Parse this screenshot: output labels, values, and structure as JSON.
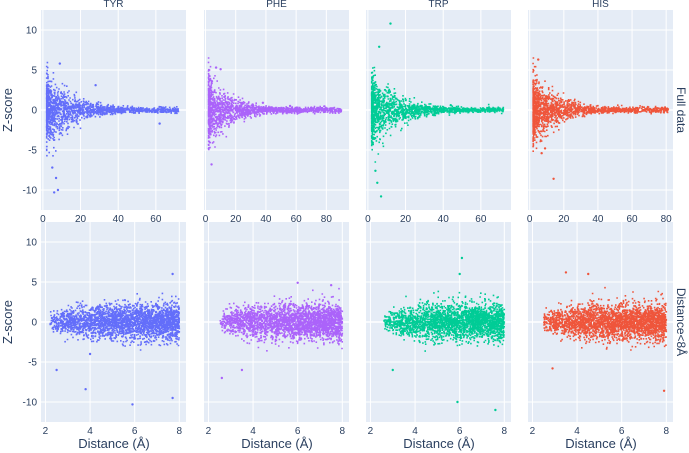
{
  "chart_data": {
    "type": "scatter",
    "layout": "2x4 faceted grid",
    "ylabel": "Z-score",
    "xlabel": "Distance (Å)",
    "column_titles": [
      "TYR",
      "PHE",
      "TRP",
      "HIS"
    ],
    "row_titles": [
      "Full data",
      "Distance<8Å"
    ],
    "colors": {
      "TYR": "#636efa",
      "PHE": "#ab63fa",
      "TRP": "#00cc96",
      "HIS": "#ef553b"
    },
    "ylim": [
      -12.5,
      12.5
    ],
    "yticks": [
      -10,
      -5,
      0,
      5,
      10
    ],
    "panels": [
      {
        "name": "TYR",
        "row": "Full data",
        "xlim": [
          -1,
          76
        ],
        "xticks": [
          0,
          20,
          40,
          60
        ],
        "max_distance": 72,
        "points_x": [
          6,
          8,
          7,
          5,
          9,
          28,
          62
        ],
        "points_y": [
          -10.3,
          -10,
          -8.5,
          -7.2,
          5.8,
          3.1,
          -1.7
        ]
      },
      {
        "name": "PHE",
        "row": "Full data",
        "xlim": [
          -1,
          95
        ],
        "xticks": [
          0,
          20,
          40,
          60,
          80
        ],
        "max_distance": 90,
        "points_x": [
          4,
          7,
          10,
          38,
          56,
          70,
          88
        ],
        "points_y": [
          -6.8,
          5.3,
          5.1,
          0.9,
          0.5,
          0.3,
          0.1
        ]
      },
      {
        "name": "TRP",
        "row": "Full data",
        "xlim": [
          -1,
          76
        ],
        "xticks": [
          0,
          20,
          40,
          60
        ],
        "max_distance": 72,
        "points_x": [
          12,
          6,
          7,
          5,
          4,
          44,
          70
        ],
        "points_y": [
          10.8,
          7.9,
          -10.8,
          -9.1,
          -7.6,
          0.6,
          0.2
        ]
      },
      {
        "name": "HIS",
        "row": "Full data",
        "xlim": [
          -1,
          84
        ],
        "xticks": [
          0,
          20,
          40,
          60,
          80
        ],
        "max_distance": 81,
        "points_x": [
          14,
          5,
          7,
          9,
          81
        ],
        "points_y": [
          -8.6,
          6.3,
          -5.4,
          -4.8,
          0.1
        ]
      },
      {
        "name": "TYR",
        "row": "Distance<8Å",
        "xlim": [
          1.8,
          8.3
        ],
        "xticks": [
          2,
          4,
          6,
          8
        ],
        "min_distance": 2.2,
        "points_x": [
          5.9,
          7.7,
          3.8,
          2.5,
          7.7,
          4.0
        ],
        "points_y": [
          -10.3,
          6.0,
          -8.4,
          -6.0,
          -9.5,
          -4.0
        ]
      },
      {
        "name": "PHE",
        "row": "Distance<8Å",
        "xlim": [
          1.8,
          8.3
        ],
        "xticks": [
          2,
          4,
          6,
          8
        ],
        "min_distance": 2.5,
        "points_x": [
          2.6,
          3.5,
          6.0,
          7.5,
          7.9
        ],
        "points_y": [
          -7.0,
          -6.0,
          4.9,
          4.6,
          0.2
        ]
      },
      {
        "name": "TRP",
        "row": "Distance<8Å",
        "xlim": [
          1.8,
          8.3
        ],
        "xticks": [
          2,
          4,
          6,
          8
        ],
        "min_distance": 2.6,
        "points_x": [
          6.1,
          7.6,
          5.9,
          3.0,
          6.0
        ],
        "points_y": [
          8.0,
          -11.0,
          -10.0,
          -6.0,
          6.0
        ]
      },
      {
        "name": "HIS",
        "row": "Distance<8Å",
        "xlim": [
          1.8,
          8.3
        ],
        "xticks": [
          2,
          4,
          6,
          8
        ],
        "min_distance": 2.5,
        "points_x": [
          7.9,
          2.9,
          3.5,
          4.5
        ],
        "points_y": [
          -8.6,
          -5.8,
          6.2,
          6.0
        ]
      }
    ]
  }
}
